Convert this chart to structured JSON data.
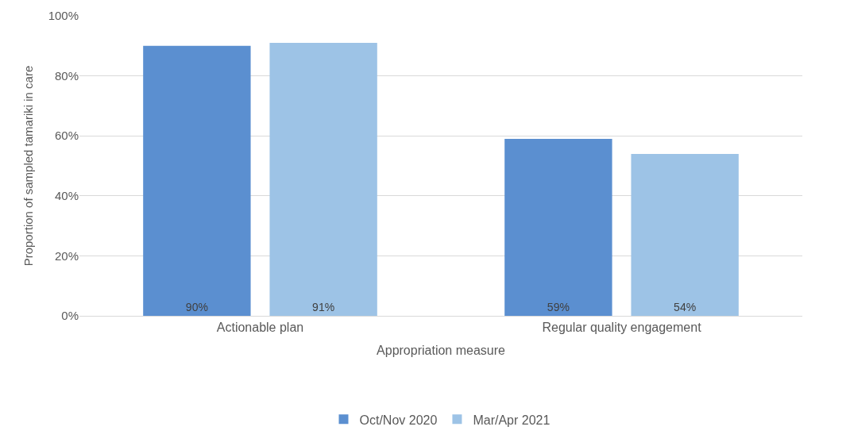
{
  "chart_data": {
    "type": "bar",
    "xlabel": "Appropriation measure",
    "ylabel": "Proportion of sampled tamariki in care",
    "categories": [
      "Actionable plan",
      "Regular quality engagement"
    ],
    "series": [
      {
        "name": "Oct/Nov 2020",
        "color": "#5b8fd0",
        "values": [
          90,
          59
        ],
        "value_labels": [
          "90%",
          "59%"
        ]
      },
      {
        "name": "Mar/Apr 2021",
        "color": "#9dc3e6",
        "values": [
          91,
          54
        ],
        "value_labels": [
          "91%",
          "54%"
        ]
      }
    ],
    "ylim": [
      0,
      100
    ],
    "yticks": [
      {
        "value": 0,
        "label": "0%"
      },
      {
        "value": 20,
        "label": "20%"
      },
      {
        "value": 40,
        "label": "40%"
      },
      {
        "value": 60,
        "label": "60%"
      },
      {
        "value": 80,
        "label": "80%"
      },
      {
        "value": 100,
        "label": "100%"
      }
    ],
    "grid": "y",
    "legend": "bottom"
  }
}
